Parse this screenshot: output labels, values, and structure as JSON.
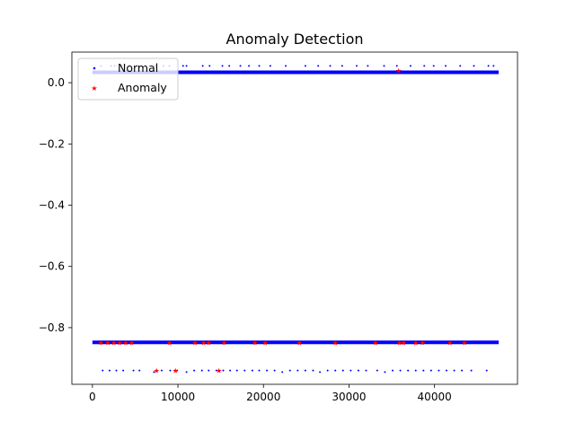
{
  "chart_data": {
    "type": "scatter",
    "title": "Anomaly Detection",
    "xlabel": "",
    "ylabel": "",
    "xlim": [
      -2400,
      49700
    ],
    "ylim": [
      -0.985,
      0.1
    ],
    "x_ticks": [
      0,
      10000,
      20000,
      30000,
      40000
    ],
    "x_tick_labels": [
      "0",
      "10000",
      "20000",
      "30000",
      "40000"
    ],
    "y_ticks": [
      0.0,
      -0.2,
      -0.4,
      -0.6,
      -0.8
    ],
    "y_tick_labels": [
      "0.0",
      "−0.2",
      "−0.4",
      "−0.6",
      "−0.8"
    ],
    "grid": false,
    "legend_position": "top-left",
    "series": [
      {
        "name": "Normal",
        "color": "#0000ff",
        "marker": "dot",
        "bands": [
          {
            "y": 0.034,
            "x_range": [
              0,
              47500
            ],
            "dense": true
          },
          {
            "y": -0.848,
            "x_range": [
              0,
              47500
            ],
            "dense": true
          }
        ],
        "points": [
          [
            1000,
            0.055
          ],
          [
            2200,
            0.055
          ],
          [
            2600,
            0.055
          ],
          [
            3400,
            0.055
          ],
          [
            4300,
            0.055
          ],
          [
            5400,
            0.055
          ],
          [
            7400,
            0.055
          ],
          [
            8300,
            0.055
          ],
          [
            9000,
            0.055
          ],
          [
            10600,
            0.055
          ],
          [
            11000,
            0.055
          ],
          [
            12900,
            0.055
          ],
          [
            13700,
            0.055
          ],
          [
            15200,
            0.055
          ],
          [
            16000,
            0.055
          ],
          [
            17300,
            0.055
          ],
          [
            18300,
            0.055
          ],
          [
            19500,
            0.055
          ],
          [
            20800,
            0.055
          ],
          [
            22600,
            0.055
          ],
          [
            24900,
            0.055
          ],
          [
            26400,
            0.055
          ],
          [
            27800,
            0.055
          ],
          [
            29200,
            0.055
          ],
          [
            30900,
            0.055
          ],
          [
            32200,
            0.055
          ],
          [
            34100,
            0.055
          ],
          [
            35600,
            0.055
          ],
          [
            37200,
            0.055
          ],
          [
            38800,
            0.055
          ],
          [
            39900,
            0.055
          ],
          [
            41300,
            0.055
          ],
          [
            43000,
            0.055
          ],
          [
            44600,
            0.055
          ],
          [
            46300,
            0.055
          ],
          [
            46900,
            0.055
          ],
          [
            1200,
            -0.94
          ],
          [
            2000,
            -0.94
          ],
          [
            2800,
            -0.94
          ],
          [
            3600,
            -0.94
          ],
          [
            4800,
            -0.94
          ],
          [
            5500,
            -0.94
          ],
          [
            7200,
            -0.945
          ],
          [
            8100,
            -0.94
          ],
          [
            9100,
            -0.94
          ],
          [
            9900,
            -0.94
          ],
          [
            11000,
            -0.945
          ],
          [
            11900,
            -0.94
          ],
          [
            12800,
            -0.94
          ],
          [
            13600,
            -0.94
          ],
          [
            14500,
            -0.94
          ],
          [
            15300,
            -0.94
          ],
          [
            16100,
            -0.94
          ],
          [
            16900,
            -0.94
          ],
          [
            17800,
            -0.94
          ],
          [
            18700,
            -0.94
          ],
          [
            19500,
            -0.94
          ],
          [
            20400,
            -0.94
          ],
          [
            21300,
            -0.94
          ],
          [
            22200,
            -0.945
          ],
          [
            23100,
            -0.94
          ],
          [
            24000,
            -0.94
          ],
          [
            24900,
            -0.94
          ],
          [
            25800,
            -0.94
          ],
          [
            26600,
            -0.945
          ],
          [
            27500,
            -0.94
          ],
          [
            28400,
            -0.94
          ],
          [
            29300,
            -0.94
          ],
          [
            30200,
            -0.94
          ],
          [
            31100,
            -0.94
          ],
          [
            32000,
            -0.94
          ],
          [
            33300,
            -0.94
          ],
          [
            34200,
            -0.945
          ],
          [
            35100,
            -0.94
          ],
          [
            36000,
            -0.94
          ],
          [
            36900,
            -0.94
          ],
          [
            37800,
            -0.94
          ],
          [
            38700,
            -0.94
          ],
          [
            39600,
            -0.94
          ],
          [
            40500,
            -0.94
          ],
          [
            41400,
            -0.94
          ],
          [
            42300,
            -0.94
          ],
          [
            43200,
            -0.94
          ],
          [
            44300,
            -0.94
          ],
          [
            46100,
            -0.94
          ]
        ]
      },
      {
        "name": "Anomaly",
        "color": "#ff0000",
        "marker": "star",
        "points": [
          [
            35800,
            0.04
          ],
          [
            1000,
            -0.848
          ],
          [
            1800,
            -0.848
          ],
          [
            2500,
            -0.848
          ],
          [
            3200,
            -0.848
          ],
          [
            3900,
            -0.848
          ],
          [
            4600,
            -0.848
          ],
          [
            9000,
            -0.848
          ],
          [
            12000,
            -0.848
          ],
          [
            13000,
            -0.848
          ],
          [
            13600,
            -0.848
          ],
          [
            15400,
            -0.848
          ],
          [
            19000,
            -0.848
          ],
          [
            20200,
            -0.848
          ],
          [
            24200,
            -0.848
          ],
          [
            28400,
            -0.848
          ],
          [
            33100,
            -0.848
          ],
          [
            35900,
            -0.848
          ],
          [
            36400,
            -0.848
          ],
          [
            37800,
            -0.848
          ],
          [
            38600,
            -0.848
          ],
          [
            41800,
            -0.848
          ],
          [
            43500,
            -0.848
          ],
          [
            7500,
            -0.94
          ],
          [
            9700,
            -0.94
          ],
          [
            14800,
            -0.94
          ]
        ]
      }
    ]
  }
}
